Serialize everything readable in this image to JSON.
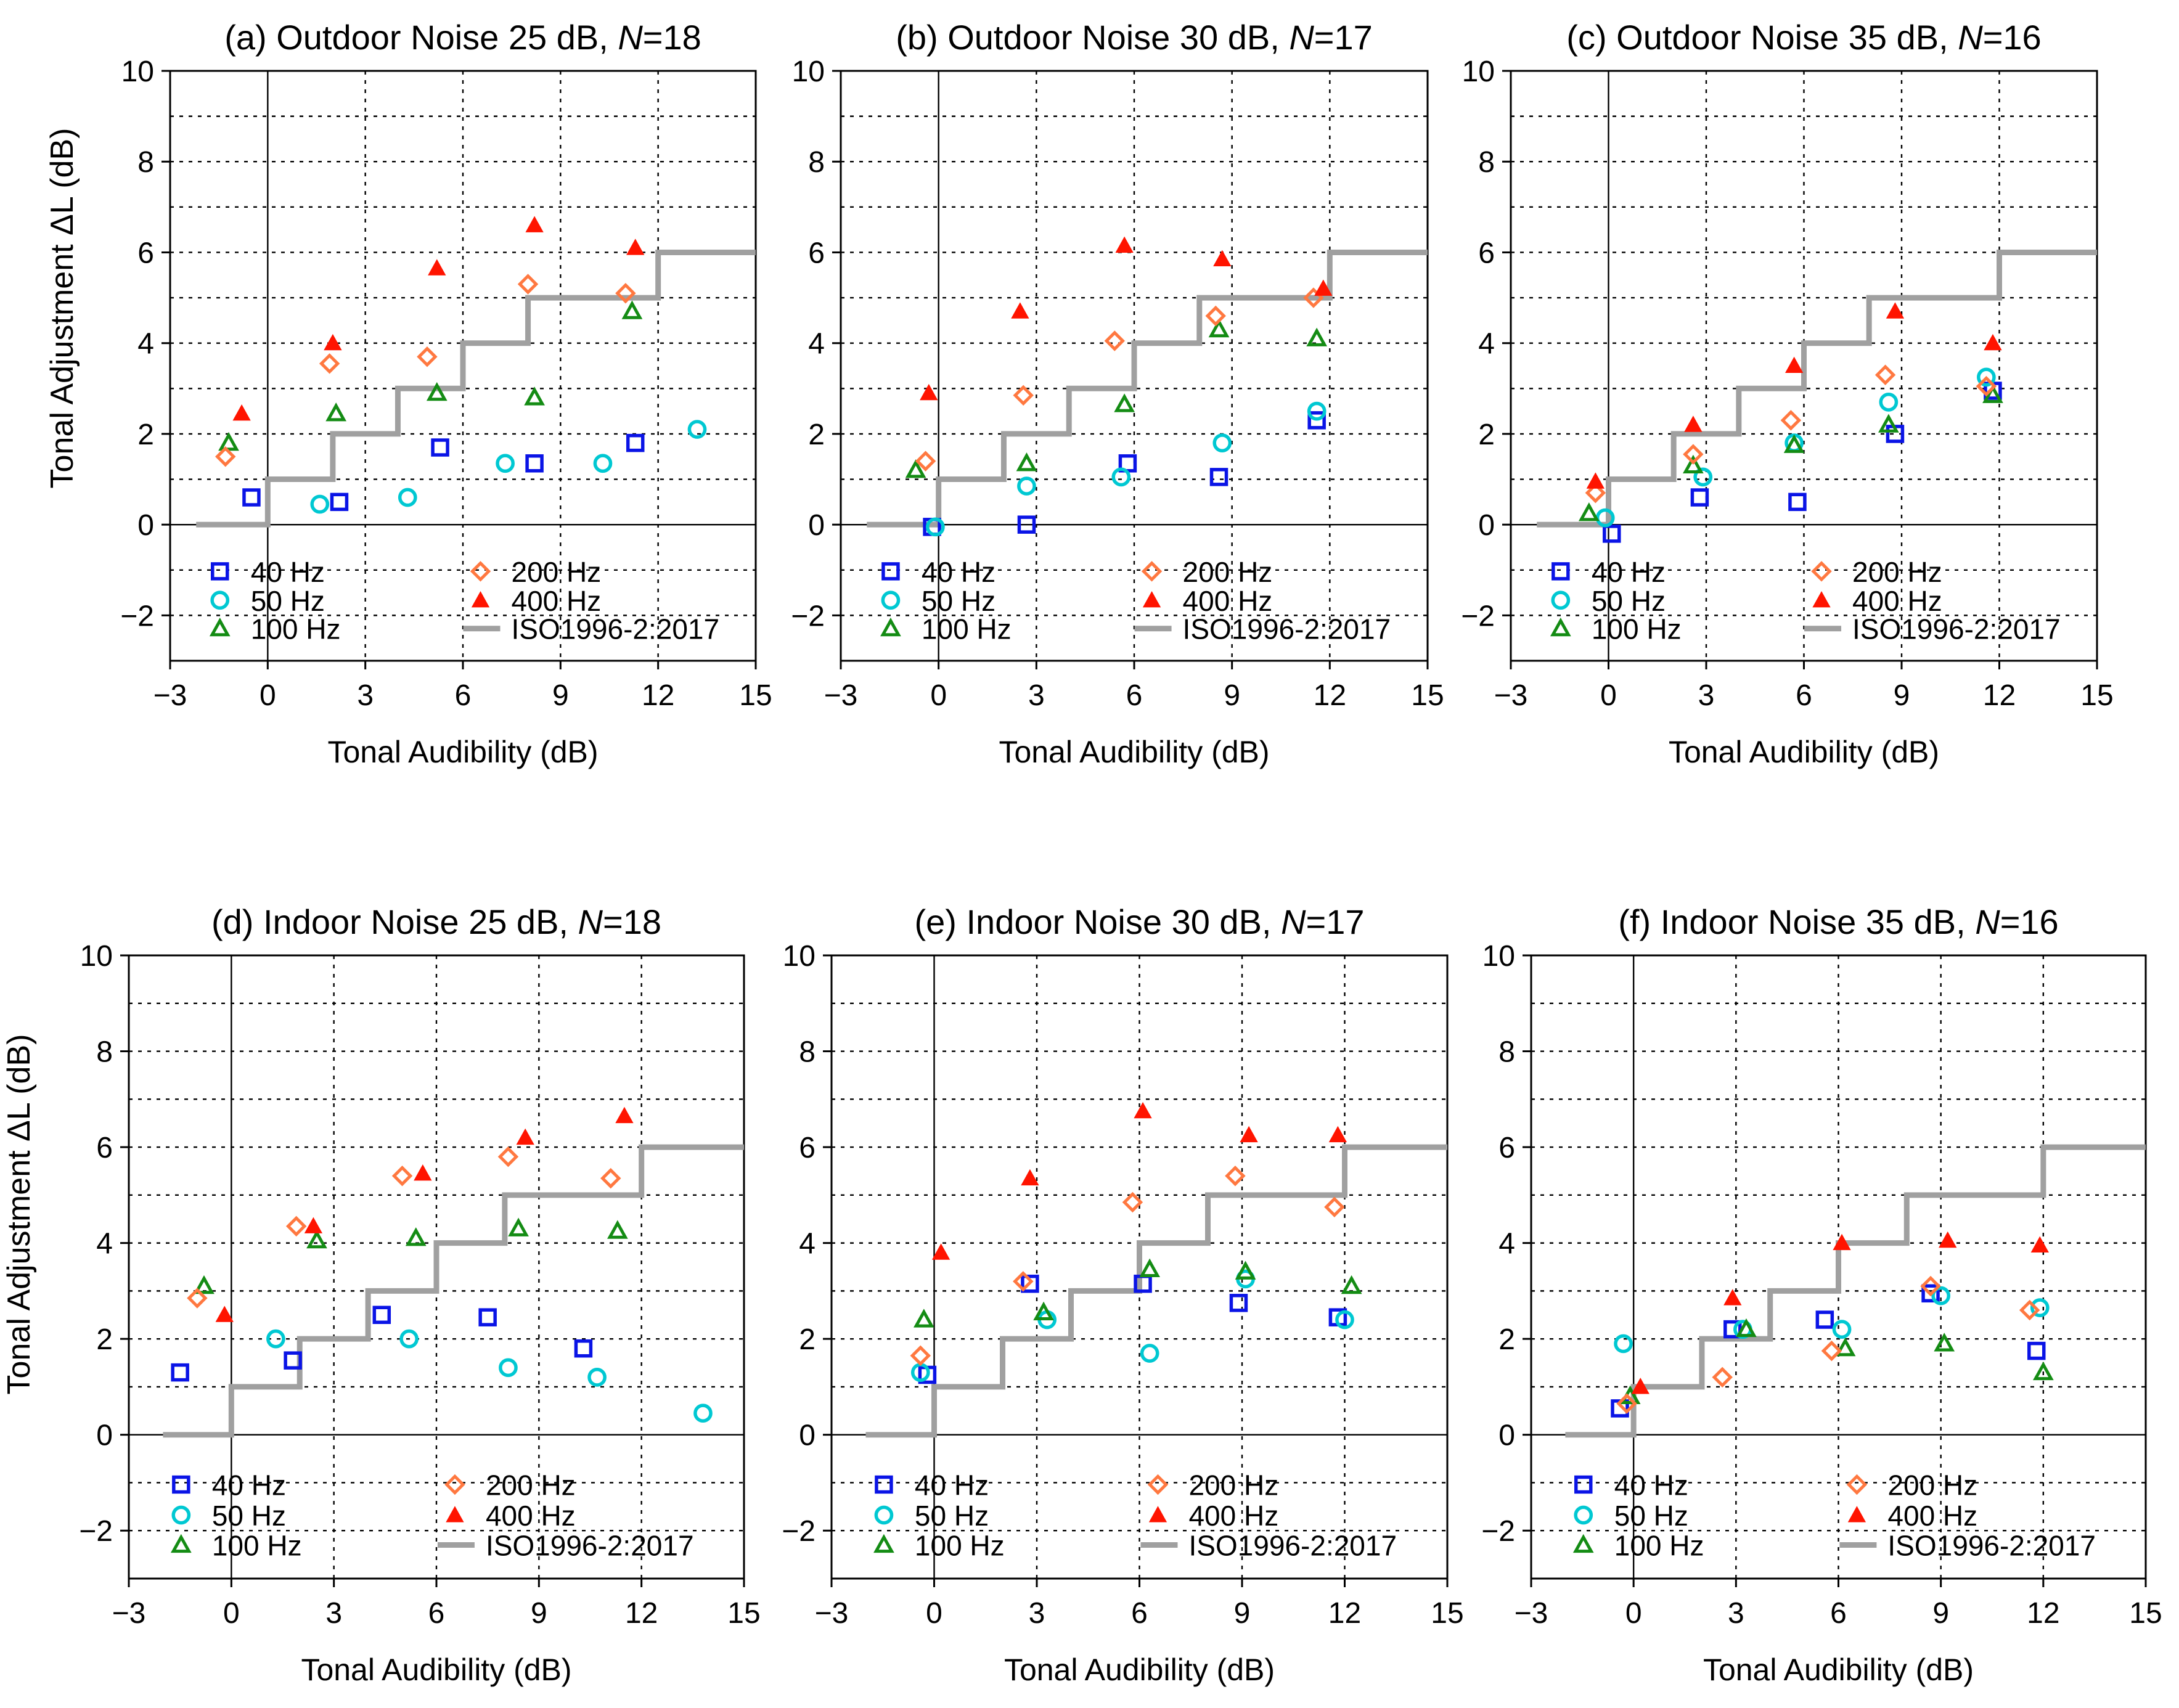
{
  "figure": {
    "y_axis_label": "Tonal Adjustment ΔL  (dB)",
    "colors": {
      "40 Hz": "#0a14e6",
      "50 Hz": "#00c8d2",
      "100 Hz": "#148c14",
      "200 Hz": "#ff7840",
      "400 Hz": "#ff1400",
      "ISO1996-2:2017": "#a0a0a0",
      "grid": "#000000",
      "axis": "#000000"
    }
  },
  "chart_data": [
    {
      "type": "scatter",
      "title_prefix": "(a) Outdoor Noise 25 dB, ",
      "title_italic": "N",
      "title_suffix": "=18",
      "xlabel": "Tonal Audibility (dB)",
      "ylabel": "Tonal Adjustment ΔL  (dB)",
      "xlim": [
        -3,
        15
      ],
      "ylim": [
        -3,
        10
      ],
      "xticks": [
        -3,
        0,
        3,
        6,
        9,
        12,
        15
      ],
      "yticks": [
        -2,
        0,
        2,
        4,
        6,
        8,
        10
      ],
      "grid": "dotted",
      "series": [
        {
          "name": "40 Hz",
          "marker": "square",
          "x": [
            -0.5,
            2.2,
            5.3,
            8.2,
            11.3
          ],
          "y": [
            0.6,
            0.5,
            1.7,
            1.35,
            1.8
          ]
        },
        {
          "name": "50 Hz",
          "marker": "circle",
          "x": [
            1.6,
            4.3,
            7.3,
            10.3,
            13.2
          ],
          "y": [
            0.45,
            0.6,
            1.35,
            1.35,
            2.1
          ]
        },
        {
          "name": "100 Hz",
          "marker": "triangle-open",
          "x": [
            -1.2,
            2.1,
            5.2,
            8.2,
            11.2
          ],
          "y": [
            1.8,
            2.45,
            2.9,
            2.8,
            4.7
          ]
        },
        {
          "name": "200 Hz",
          "marker": "diamond",
          "x": [
            -1.3,
            1.9,
            4.9,
            8.0,
            11.0
          ],
          "y": [
            1.5,
            3.55,
            3.7,
            5.3,
            5.1
          ]
        },
        {
          "name": "400 Hz",
          "marker": "triangle-filled",
          "x": [
            -0.8,
            2.0,
            5.2,
            8.2,
            11.3
          ],
          "y": [
            2.45,
            4.0,
            5.65,
            6.6,
            6.1
          ]
        }
      ],
      "reference_line": {
        "name": "ISO1996-2:2017",
        "x": [
          -2.2,
          0,
          0,
          2,
          2,
          4,
          4,
          6,
          6,
          8,
          8,
          10,
          10,
          12,
          12,
          15
        ],
        "y": [
          0,
          0,
          1,
          1,
          2,
          2,
          3,
          3,
          4,
          4,
          5,
          5,
          5,
          5,
          6,
          6
        ]
      },
      "legend": "lower"
    },
    {
      "type": "scatter",
      "title_prefix": "(b) Outdoor Noise 30 dB, ",
      "title_italic": "N",
      "title_suffix": "=17",
      "xlabel": "Tonal Audibility (dB)",
      "ylabel": "",
      "xlim": [
        -3,
        15
      ],
      "ylim": [
        -3,
        10
      ],
      "xticks": [
        -3,
        0,
        3,
        6,
        9,
        12,
        15
      ],
      "yticks": [
        -2,
        0,
        2,
        4,
        6,
        8,
        10
      ],
      "grid": "dotted",
      "series": [
        {
          "name": "40 Hz",
          "marker": "square",
          "x": [
            -0.2,
            2.7,
            5.8,
            8.6,
            11.6
          ],
          "y": [
            -0.05,
            0.0,
            1.35,
            1.05,
            2.3
          ]
        },
        {
          "name": "50 Hz",
          "marker": "circle",
          "x": [
            -0.1,
            2.7,
            5.6,
            8.7,
            11.6
          ],
          "y": [
            -0.05,
            0.85,
            1.05,
            1.8,
            2.5
          ]
        },
        {
          "name": "100 Hz",
          "marker": "triangle-open",
          "x": [
            -0.7,
            2.7,
            5.7,
            8.6,
            11.6
          ],
          "y": [
            1.2,
            1.35,
            2.65,
            4.3,
            4.1
          ]
        },
        {
          "name": "200 Hz",
          "marker": "diamond",
          "x": [
            -0.4,
            2.6,
            5.4,
            8.5,
            11.5
          ],
          "y": [
            1.4,
            2.85,
            4.05,
            4.6,
            5.0
          ]
        },
        {
          "name": "400 Hz",
          "marker": "triangle-filled",
          "x": [
            -0.3,
            2.5,
            5.7,
            8.7,
            11.8
          ],
          "y": [
            2.9,
            4.7,
            6.15,
            5.85,
            5.2
          ]
        }
      ],
      "reference_line": {
        "name": "ISO1996-2:2017",
        "x": [
          -2.2,
          0,
          0,
          2,
          2,
          4,
          4,
          6,
          6,
          8,
          8,
          10,
          10,
          12,
          12,
          15
        ],
        "y": [
          0,
          0,
          1,
          1,
          2,
          2,
          3,
          3,
          4,
          4,
          5,
          5,
          5,
          5,
          6,
          6
        ]
      },
      "legend": "lower"
    },
    {
      "type": "scatter",
      "title_prefix": "(c) Outdoor Noise 35 dB, ",
      "title_italic": "N",
      "title_suffix": "=16",
      "xlabel": "Tonal Audibility (dB)",
      "ylabel": "",
      "xlim": [
        -3,
        15
      ],
      "ylim": [
        -3,
        10
      ],
      "xticks": [
        -3,
        0,
        3,
        6,
        9,
        12,
        15
      ],
      "yticks": [
        -2,
        0,
        2,
        4,
        6,
        8,
        10
      ],
      "grid": "dotted",
      "series": [
        {
          "name": "40 Hz",
          "marker": "square",
          "x": [
            0.1,
            2.8,
            5.8,
            8.8,
            11.8
          ],
          "y": [
            -0.2,
            0.6,
            0.5,
            2.0,
            2.95
          ]
        },
        {
          "name": "50 Hz",
          "marker": "circle",
          "x": [
            -0.1,
            2.9,
            5.7,
            8.6,
            11.6
          ],
          "y": [
            0.15,
            1.05,
            1.8,
            2.7,
            3.25
          ]
        },
        {
          "name": "100 Hz",
          "marker": "triangle-open",
          "x": [
            -0.6,
            2.6,
            5.7,
            8.6,
            11.8
          ],
          "y": [
            0.25,
            1.3,
            1.75,
            2.2,
            2.85
          ]
        },
        {
          "name": "200 Hz",
          "marker": "diamond",
          "x": [
            -0.4,
            2.6,
            5.6,
            8.5,
            11.6
          ],
          "y": [
            0.7,
            1.55,
            2.3,
            3.3,
            3.05
          ]
        },
        {
          "name": "400 Hz",
          "marker": "triangle-filled",
          "x": [
            -0.4,
            2.6,
            5.7,
            8.8,
            11.8
          ],
          "y": [
            0.95,
            2.2,
            3.5,
            4.7,
            4.0
          ]
        }
      ],
      "reference_line": {
        "name": "ISO1996-2:2017",
        "x": [
          -2.2,
          0,
          0,
          2,
          2,
          4,
          4,
          6,
          6,
          8,
          8,
          10,
          10,
          12,
          12,
          15
        ],
        "y": [
          0,
          0,
          1,
          1,
          2,
          2,
          3,
          3,
          4,
          4,
          5,
          5,
          5,
          5,
          6,
          6
        ]
      },
      "legend": "lower"
    },
    {
      "type": "scatter",
      "title_prefix": "(d) Indoor Noise 25 dB, ",
      "title_italic": "N",
      "title_suffix": "=18",
      "xlabel": "Tonal Audibility (dB)",
      "ylabel": "Tonal Adjustment ΔL  (dB)",
      "xlim": [
        -3,
        15
      ],
      "ylim": [
        -3,
        10
      ],
      "xticks": [
        -3,
        0,
        3,
        6,
        9,
        12,
        15
      ],
      "yticks": [
        -2,
        0,
        2,
        4,
        6,
        8,
        10
      ],
      "grid": "dotted",
      "series": [
        {
          "name": "40 Hz",
          "marker": "square",
          "x": [
            -1.5,
            1.8,
            4.4,
            7.5,
            10.3
          ],
          "y": [
            1.3,
            1.55,
            2.5,
            2.45,
            1.8
          ]
        },
        {
          "name": "50 Hz",
          "marker": "circle",
          "x": [
            1.3,
            5.2,
            8.1,
            10.7,
            13.8
          ],
          "y": [
            2.0,
            2.0,
            1.4,
            1.2,
            0.45
          ]
        },
        {
          "name": "100 Hz",
          "marker": "triangle-open",
          "x": [
            -0.8,
            2.5,
            5.4,
            8.4,
            11.3
          ],
          "y": [
            3.1,
            4.05,
            4.1,
            4.3,
            4.25
          ]
        },
        {
          "name": "200 Hz",
          "marker": "diamond",
          "x": [
            -1.0,
            1.9,
            5.0,
            8.1,
            11.1
          ],
          "y": [
            2.85,
            4.35,
            5.4,
            5.8,
            5.35
          ]
        },
        {
          "name": "400 Hz",
          "marker": "triangle-filled",
          "x": [
            -0.2,
            2.4,
            5.6,
            8.6,
            11.5
          ],
          "y": [
            2.5,
            4.35,
            5.45,
            6.2,
            6.65
          ]
        }
      ],
      "reference_line": {
        "name": "ISO1996-2:2017",
        "x": [
          -2.0,
          0,
          0,
          2,
          2,
          4,
          4,
          6,
          6,
          8,
          8,
          10,
          10,
          12,
          12,
          15
        ],
        "y": [
          0,
          0,
          1,
          1,
          2,
          2,
          3,
          3,
          4,
          4,
          5,
          5,
          5,
          5,
          6,
          6
        ]
      },
      "legend": "lower"
    },
    {
      "type": "scatter",
      "title_prefix": "(e) Indoor Noise 30 dB, ",
      "title_italic": "N",
      "title_suffix": "=17",
      "xlabel": "Tonal Audibility (dB)",
      "ylabel": "",
      "xlim": [
        -3,
        15
      ],
      "ylim": [
        -3,
        10
      ],
      "xticks": [
        -3,
        0,
        3,
        6,
        9,
        12,
        15
      ],
      "yticks": [
        -2,
        0,
        2,
        4,
        6,
        8,
        10
      ],
      "grid": "dotted",
      "series": [
        {
          "name": "40 Hz",
          "marker": "square",
          "x": [
            -0.2,
            2.8,
            6.1,
            8.9,
            11.8
          ],
          "y": [
            1.25,
            3.15,
            3.15,
            2.75,
            2.45
          ]
        },
        {
          "name": "50 Hz",
          "marker": "circle",
          "x": [
            -0.4,
            3.3,
            6.3,
            9.1,
            12.0
          ],
          "y": [
            1.3,
            2.4,
            1.7,
            3.25,
            2.4
          ]
        },
        {
          "name": "100 Hz",
          "marker": "triangle-open",
          "x": [
            -0.3,
            3.2,
            6.3,
            9.1,
            12.2
          ],
          "y": [
            2.4,
            2.55,
            3.45,
            3.4,
            3.1
          ]
        },
        {
          "name": "200 Hz",
          "marker": "diamond",
          "x": [
            -0.4,
            2.6,
            5.8,
            8.8,
            11.7
          ],
          "y": [
            1.65,
            3.2,
            4.85,
            5.4,
            4.75
          ]
        },
        {
          "name": "400 Hz",
          "marker": "triangle-filled",
          "x": [
            0.2,
            2.8,
            6.1,
            9.2,
            11.8
          ],
          "y": [
            3.8,
            5.35,
            6.75,
            6.25,
            6.25
          ]
        }
      ],
      "reference_line": {
        "name": "ISO1996-2:2017",
        "x": [
          -2.0,
          0,
          0,
          2,
          2,
          4,
          4,
          6,
          6,
          8,
          8,
          10,
          10,
          12,
          12,
          15
        ],
        "y": [
          0,
          0,
          1,
          1,
          2,
          2,
          3,
          3,
          4,
          4,
          5,
          5,
          5,
          5,
          6,
          6
        ]
      },
      "legend": "lower"
    },
    {
      "type": "scatter",
      "title_prefix": "(f) Indoor Noise 35 dB, ",
      "title_italic": "N",
      "title_suffix": "=16",
      "xlabel": "Tonal Audibility (dB)",
      "ylabel": "",
      "xlim": [
        -3,
        15
      ],
      "ylim": [
        -3,
        10
      ],
      "xticks": [
        -3,
        0,
        3,
        6,
        9,
        12,
        15
      ],
      "yticks": [
        -2,
        0,
        2,
        4,
        6,
        8,
        10
      ],
      "grid": "dotted",
      "series": [
        {
          "name": "40 Hz",
          "marker": "square",
          "x": [
            -0.4,
            2.9,
            5.6,
            8.7,
            11.8
          ],
          "y": [
            0.55,
            2.2,
            2.4,
            2.95,
            1.75
          ]
        },
        {
          "name": "50 Hz",
          "marker": "circle",
          "x": [
            -0.3,
            3.2,
            6.1,
            9.0,
            11.9
          ],
          "y": [
            1.9,
            2.2,
            2.2,
            2.9,
            2.65
          ]
        },
        {
          "name": "100 Hz",
          "marker": "triangle-open",
          "x": [
            -0.1,
            3.3,
            6.2,
            9.1,
            12.0
          ],
          "y": [
            0.8,
            2.2,
            1.8,
            1.9,
            1.3
          ]
        },
        {
          "name": "200 Hz",
          "marker": "diamond",
          "x": [
            -0.2,
            2.6,
            5.8,
            8.7,
            11.6
          ],
          "y": [
            0.65,
            1.2,
            1.75,
            3.1,
            2.6
          ]
        },
        {
          "name": "400 Hz",
          "marker": "triangle-filled",
          "x": [
            0.2,
            2.9,
            6.1,
            9.2,
            11.9
          ],
          "y": [
            1.0,
            2.85,
            4.0,
            4.05,
            3.95
          ]
        }
      ],
      "reference_line": {
        "name": "ISO1996-2:2017",
        "x": [
          -2.0,
          0,
          0,
          2,
          2,
          4,
          4,
          6,
          6,
          8,
          8,
          10,
          10,
          12,
          12,
          15
        ],
        "y": [
          0,
          0,
          1,
          1,
          2,
          2,
          3,
          3,
          4,
          4,
          5,
          5,
          5,
          5,
          6,
          6
        ]
      },
      "legend": "lower"
    }
  ]
}
